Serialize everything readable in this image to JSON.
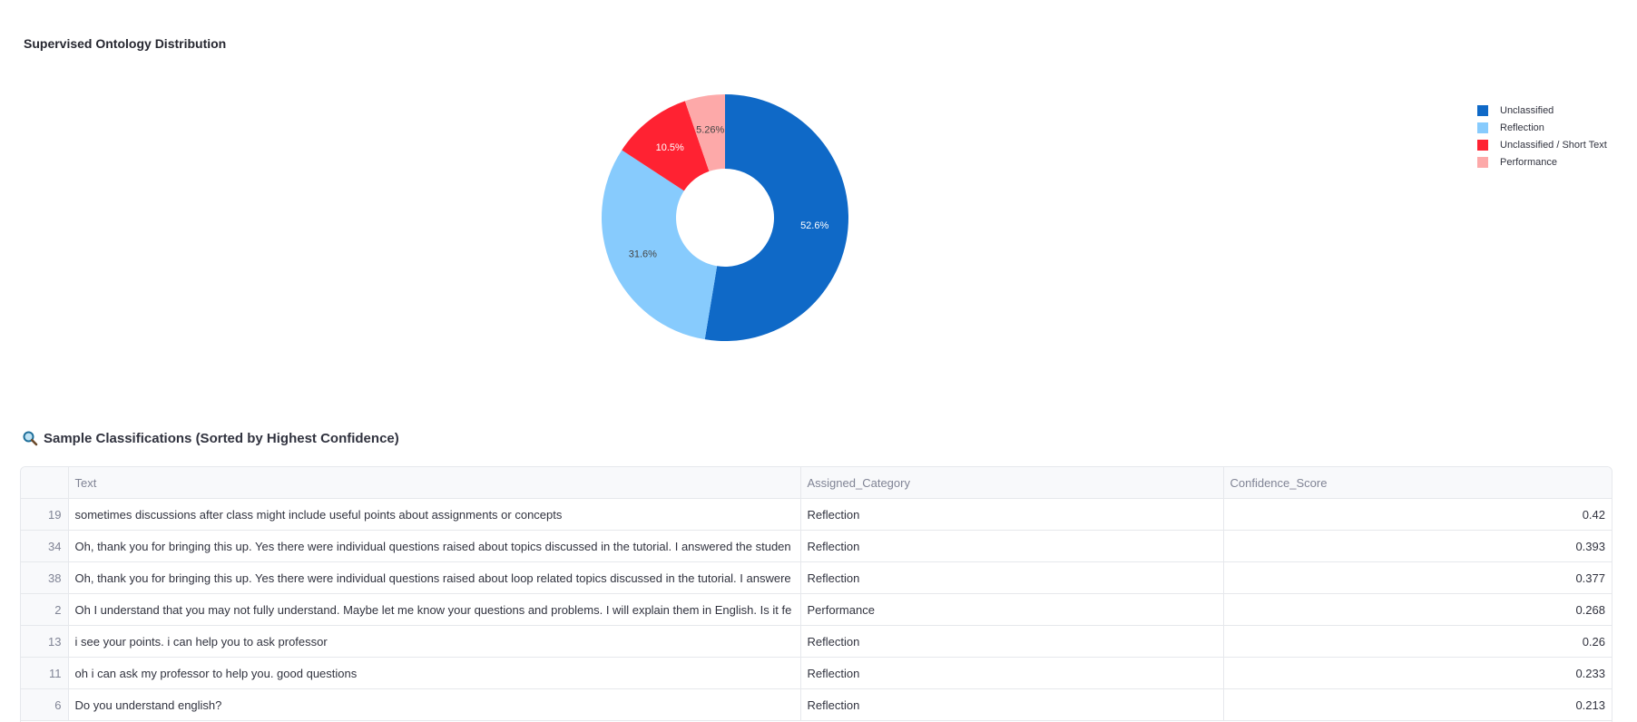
{
  "chart_data": {
    "type": "pie",
    "title": "Supervised Ontology Distribution",
    "hole": true,
    "labels": [
      "Unclassified",
      "Reflection",
      "Unclassified / Short Text",
      "Performance"
    ],
    "values": [
      52.6,
      31.6,
      10.5,
      5.26
    ],
    "value_labels": [
      "52.6%",
      "31.6%",
      "10.5%",
      "5.26%"
    ],
    "colors": [
      "#0f69c7",
      "#87cbfd",
      "#ff2232",
      "#fda9a9"
    ],
    "label_colors": [
      "#ffffff",
      "#444444",
      "#ffffff",
      "#444444"
    ],
    "legend_position": "top-right"
  },
  "samples": {
    "heading": "Sample Classifications (Sorted by Highest Confidence)",
    "icon": "magnifying-glass-icon",
    "columns": [
      "",
      "Text",
      "Assigned_Category",
      "Confidence_Score"
    ],
    "rows": [
      {
        "index": "19",
        "text": "sometimes discussions after class might include useful points about assignments or concepts",
        "category": "Reflection",
        "score": "0.42"
      },
      {
        "index": "34",
        "text": "Oh, thank you for bringing this up. Yes there were individual questions raised about topics discussed in the tutorial. I answered the studen",
        "category": "Reflection",
        "score": "0.393"
      },
      {
        "index": "38",
        "text": "Oh, thank you for bringing this up. Yes there were individual questions raised about loop related topics discussed in the tutorial. I answere",
        "category": "Reflection",
        "score": "0.377"
      },
      {
        "index": "2",
        "text": "Oh I understand that you may not fully understand. Maybe let me know your questions and problems. I will explain them in English. Is it fe",
        "category": "Performance",
        "score": "0.268"
      },
      {
        "index": "13",
        "text": "i see your points. i can help you to ask professor",
        "category": "Reflection",
        "score": "0.26"
      },
      {
        "index": "11",
        "text": "oh i can ask my professor to help you. good questions",
        "category": "Reflection",
        "score": "0.233"
      },
      {
        "index": "6",
        "text": "Do you understand english?",
        "category": "Reflection",
        "score": "0.213"
      }
    ]
  }
}
